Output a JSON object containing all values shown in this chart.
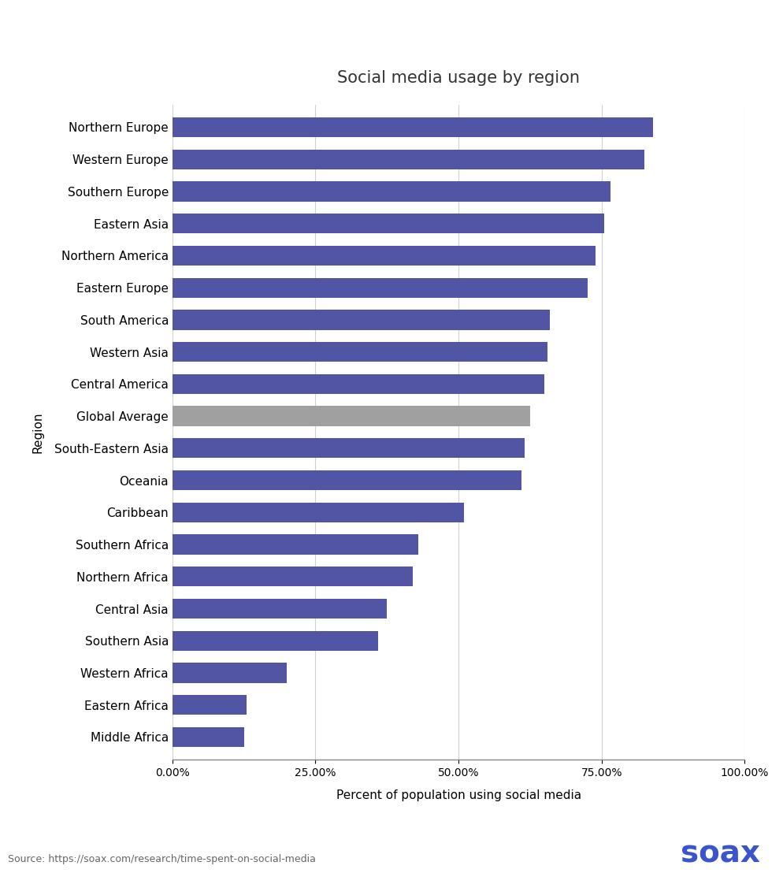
{
  "title": "Social media usage by region",
  "xlabel": "Percent of population using social media",
  "ylabel": "Region",
  "source": "Source: https://soax.com/research/time-spent-on-social-media",
  "categories": [
    "Northern Europe",
    "Western Europe",
    "Southern Europe",
    "Eastern Asia",
    "Northern America",
    "Eastern Europe",
    "South America",
    "Western Asia",
    "Central America",
    "Global Average",
    "South-Eastern Asia",
    "Oceania",
    "Caribbean",
    "Southern Africa",
    "Northern Africa",
    "Central Asia",
    "Southern Asia",
    "Western Africa",
    "Eastern Africa",
    "Middle Africa"
  ],
  "values": [
    84.0,
    82.5,
    76.5,
    75.5,
    74.0,
    72.5,
    66.0,
    65.5,
    65.0,
    62.5,
    61.5,
    61.0,
    51.0,
    43.0,
    42.0,
    37.5,
    36.0,
    20.0,
    13.0,
    12.5
  ],
  "bar_color": "#5255a4",
  "global_avg_color": "#a0a0a0",
  "global_avg_label": "Global Average",
  "xlim": [
    0,
    100
  ],
  "xticks": [
    0,
    25,
    50,
    75,
    100
  ],
  "background_color": "#ffffff",
  "grid_color": "#d0d0d0",
  "title_fontsize": 15,
  "label_fontsize": 11,
  "tick_fontsize": 10,
  "source_fontsize": 9,
  "soax_fontsize": 28,
  "soax_color": "#3a55cc",
  "soax_text": "soax"
}
